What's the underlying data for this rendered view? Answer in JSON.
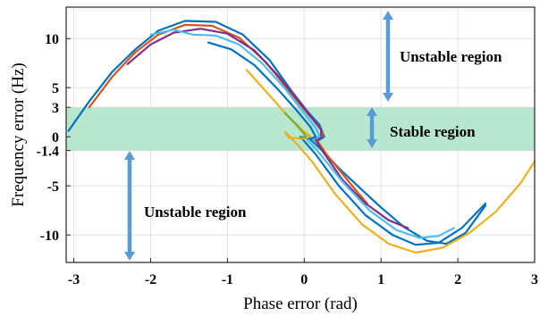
{
  "chart_data": {
    "type": "line",
    "xlabel": "Phase error (rad)",
    "ylabel": "Frequency error (Hz)",
    "xlim": [
      -3.1,
      3.0
    ],
    "ylim": [
      -12.8,
      13.2
    ],
    "x_ticks": [
      "-3",
      "-2",
      "-1",
      "0",
      "1",
      "2",
      "3"
    ],
    "x_tick_values": [
      -3,
      -2,
      -1,
      0,
      1,
      2,
      3
    ],
    "y_ticks": [
      "10",
      "5",
      "3",
      "0",
      "-1.4",
      "-5",
      "-10"
    ],
    "y_tick_values": [
      10,
      5,
      3,
      0,
      -1.4,
      -5,
      -10
    ],
    "grid": true,
    "stable_band": {
      "from": -1.4,
      "to": 3
    },
    "annotations": {
      "unstable_top": "Unstable region",
      "stable": "Stable region",
      "unstable_bottom": "Unstable region"
    },
    "colors": {
      "band": "#b3e6cc",
      "arrow": "#5b9bd5",
      "grid": "#e3e3e3"
    },
    "series": [
      {
        "color": "#0072BD",
        "values": [
          [
            -3.07,
            0.6
          ],
          [
            -2.8,
            3.6
          ],
          [
            -2.5,
            6.6
          ],
          [
            -2.2,
            8.9
          ],
          [
            -1.9,
            10.8
          ],
          [
            -1.55,
            11.8
          ],
          [
            -1.15,
            11.7
          ],
          [
            -0.8,
            10.4
          ],
          [
            -0.45,
            7.8
          ],
          [
            -0.15,
            4.5
          ],
          [
            0.05,
            2.5
          ],
          [
            0.2,
            1.2
          ],
          [
            0.26,
            0.0
          ],
          [
            0.18,
            -0.4
          ],
          [
            0.05,
            -0.05
          ],
          [
            0.22,
            -1.3
          ],
          [
            0.45,
            -3.2
          ],
          [
            0.75,
            -5.4
          ],
          [
            1.0,
            -7.2
          ],
          [
            1.3,
            -9.2
          ],
          [
            1.6,
            -10.6
          ],
          [
            1.85,
            -10.9
          ],
          [
            2.1,
            -9.8
          ],
          [
            2.36,
            -7.0
          ]
        ]
      },
      {
        "color": "#D95319",
        "values": [
          [
            -2.8,
            3.0
          ],
          [
            -2.5,
            6.1
          ],
          [
            -2.2,
            8.6
          ],
          [
            -1.9,
            10.4
          ],
          [
            -1.55,
            11.4
          ],
          [
            -1.2,
            11.3
          ],
          [
            -0.85,
            10.1
          ],
          [
            -0.5,
            7.6
          ],
          [
            -0.2,
            4.7
          ],
          [
            0.05,
            2.3
          ],
          [
            0.2,
            1.0
          ],
          [
            0.25,
            0.1
          ],
          [
            0.16,
            -0.3
          ],
          [
            0.3,
            -1.9
          ],
          [
            0.5,
            -3.8
          ],
          [
            0.7,
            -5.7
          ],
          [
            0.82,
            -6.8
          ]
        ]
      },
      {
        "color": "#7E2F8E",
        "values": [
          [
            -2.3,
            7.4
          ],
          [
            -2.0,
            9.4
          ],
          [
            -1.7,
            10.6
          ],
          [
            -1.35,
            11.0
          ],
          [
            -1.0,
            10.5
          ],
          [
            -0.65,
            8.8
          ],
          [
            -0.35,
            6.3
          ],
          [
            -0.1,
            3.9
          ],
          [
            0.1,
            1.9
          ],
          [
            0.22,
            0.7
          ],
          [
            0.22,
            -0.05
          ],
          [
            0.14,
            -0.25
          ],
          [
            0.25,
            -1.6
          ],
          [
            0.5,
            -4.4
          ],
          [
            0.8,
            -6.8
          ],
          [
            1.1,
            -8.5
          ],
          [
            1.35,
            -9.3
          ]
        ]
      },
      {
        "color": "#4DBEEE",
        "values": [
          [
            -2.0,
            10.4
          ],
          [
            -1.7,
            10.9
          ],
          [
            -1.45,
            10.4
          ],
          [
            -1.15,
            10.3
          ],
          [
            -0.85,
            9.4
          ],
          [
            -0.55,
            7.5
          ],
          [
            -0.25,
            4.9
          ],
          [
            0.0,
            2.4
          ],
          [
            0.15,
            0.9
          ],
          [
            0.2,
            0.05
          ],
          [
            0.12,
            -0.25
          ],
          [
            0.0,
            0.05
          ],
          [
            0.2,
            -1.7
          ],
          [
            0.5,
            -4.6
          ],
          [
            0.85,
            -7.5
          ],
          [
            1.2,
            -9.5
          ],
          [
            1.5,
            -10.3
          ],
          [
            1.75,
            -10.1
          ],
          [
            1.95,
            -9.3
          ]
        ]
      },
      {
        "color": "#0072BD",
        "values": [
          [
            -1.25,
            9.6
          ],
          [
            -0.95,
            8.9
          ],
          [
            -0.65,
            7.3
          ],
          [
            -0.35,
            4.9
          ],
          [
            -0.1,
            2.7
          ],
          [
            0.08,
            1.0
          ],
          [
            0.15,
            0.0
          ],
          [
            0.08,
            -0.2
          ],
          [
            -0.05,
            0.0
          ],
          [
            0.15,
            -1.8
          ],
          [
            0.45,
            -5.0
          ],
          [
            0.8,
            -8.0
          ],
          [
            1.15,
            -10.0
          ],
          [
            1.45,
            -11.0
          ],
          [
            1.75,
            -10.8
          ],
          [
            2.05,
            -9.3
          ],
          [
            2.36,
            -6.8
          ]
        ]
      },
      {
        "color": "#EDB120",
        "values": [
          [
            -0.75,
            6.8
          ],
          [
            -0.45,
            4.2
          ],
          [
            -0.2,
            2.0
          ],
          [
            0.0,
            0.5
          ],
          [
            0.08,
            0.05
          ],
          [
            0.0,
            -0.2
          ],
          [
            -0.2,
            -0.1
          ],
          [
            -0.25,
            0.5
          ],
          [
            -0.1,
            -0.7
          ],
          [
            0.1,
            -2.5
          ],
          [
            0.4,
            -5.8
          ],
          [
            0.75,
            -8.9
          ],
          [
            1.1,
            -10.9
          ],
          [
            1.45,
            -11.8
          ],
          [
            1.8,
            -11.3
          ],
          [
            2.15,
            -9.8
          ],
          [
            2.5,
            -7.6
          ],
          [
            2.82,
            -4.7
          ],
          [
            3.0,
            -2.5
          ]
        ]
      },
      {
        "color": "#77AC30",
        "values": [
          [
            -0.25,
            2.4
          ],
          [
            -0.1,
            1.2
          ],
          [
            0.0,
            0.3
          ],
          [
            0.02,
            0.0
          ],
          [
            -0.05,
            -0.1
          ]
        ]
      }
    ]
  }
}
